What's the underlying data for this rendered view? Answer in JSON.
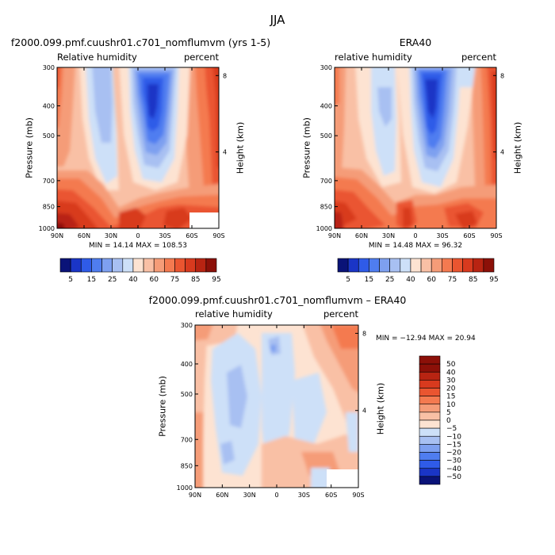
{
  "title": "JJA",
  "panels": [
    {
      "title": "f2000.099.pmf.cuushr01.c701_nomflumvm (yrs 1-5)",
      "left_label": "Relative humidity",
      "right_label": "percent",
      "min_max": "MIN =   14.14   MAX =  108.53"
    },
    {
      "title": "ERA40",
      "left_label": "relative humidity",
      "right_label": "percent",
      "min_max": "MIN =   14.48   MAX =   96.32"
    },
    {
      "title": "f2000.099.pmf.cuushr01.c701_nomflumvm – ERA40",
      "left_label": "relative humidity",
      "right_label": "percent",
      "min_max": "MIN = −12.94   MAX =   20.94"
    }
  ],
  "axis": {
    "ylabel": "Pressure (mb)",
    "ylabel_right": "Height (km)"
  },
  "chart_data": [
    {
      "type": "heatmap",
      "title": "f2000.099.pmf.cuushr01.c701_nomflumvm (yrs 1-5)",
      "subtitle_left": "Relative humidity",
      "subtitle_right": "percent",
      "x_ticks": [
        "90N",
        "60N",
        "30N",
        "0",
        "30S",
        "60S",
        "90S"
      ],
      "x_values": [
        90,
        60,
        30,
        0,
        -30,
        -60,
        -90
      ],
      "y_ticks": [
        "300",
        "400",
        "500",
        "700",
        "850",
        "1000"
      ],
      "y_values": [
        300,
        400,
        500,
        700,
        850,
        1000
      ],
      "y_right_ticks": [
        "8",
        "4"
      ],
      "y_right_values": [
        8,
        4
      ],
      "contour_levels": [
        5,
        10,
        15,
        20,
        25,
        30,
        40,
        50,
        60,
        70,
        75,
        80,
        85,
        90,
        95
      ],
      "colorbar_labels": [
        "5",
        "15",
        "25",
        "40",
        "60",
        "75",
        "85",
        "95"
      ],
      "min": 14.14,
      "max": 108.53
    },
    {
      "type": "heatmap",
      "title": "ERA40",
      "subtitle_left": "relative humidity",
      "subtitle_right": "percent",
      "x_ticks": [
        "90N",
        "60N",
        "30N",
        "0",
        "30S",
        "60S",
        "90S"
      ],
      "x_values": [
        90,
        60,
        30,
        0,
        -30,
        -60,
        -90
      ],
      "y_ticks": [
        "300",
        "400",
        "500",
        "700",
        "850",
        "1000"
      ],
      "y_values": [
        300,
        400,
        500,
        700,
        850,
        1000
      ],
      "y_right_ticks": [
        "8",
        "4"
      ],
      "y_right_values": [
        8,
        4
      ],
      "contour_levels": [
        5,
        10,
        15,
        20,
        25,
        30,
        40,
        50,
        60,
        70,
        75,
        80,
        85,
        90,
        95
      ],
      "colorbar_labels": [
        "5",
        "15",
        "25",
        "40",
        "60",
        "75",
        "85",
        "95"
      ],
      "min": 14.48,
      "max": 96.32
    },
    {
      "type": "heatmap",
      "title": "f2000.099.pmf.cuushr01.c701_nomflumvm – ERA40",
      "subtitle_left": "relative humidity",
      "subtitle_right": "percent",
      "x_ticks": [
        "90N",
        "60N",
        "30N",
        "0",
        "30S",
        "60S",
        "90S"
      ],
      "x_values": [
        90,
        60,
        30,
        0,
        -30,
        -60,
        -90
      ],
      "y_ticks": [
        "300",
        "400",
        "500",
        "700",
        "850",
        "1000"
      ],
      "y_values": [
        300,
        400,
        500,
        700,
        850,
        1000
      ],
      "y_right_ticks": [
        "8",
        "4"
      ],
      "y_right_values": [
        8,
        4
      ],
      "contour_levels": [
        -50,
        -40,
        -30,
        -20,
        -15,
        -10,
        -5,
        0,
        5,
        10,
        15,
        20,
        30,
        40,
        50
      ],
      "colorbar_labels": [
        "50",
        "40",
        "30",
        "20",
        "15",
        "10",
        "5",
        "0",
        "−5",
        "−10",
        "−15",
        "−20",
        "−30",
        "−40",
        "−50"
      ],
      "min": -12.94,
      "max": 20.94
    }
  ],
  "colors": {
    "rh_scale": [
      "#0a1378",
      "#1a35c6",
      "#2f5be8",
      "#4f7df0",
      "#7ea0f0",
      "#a8c0f2",
      "#cde0f8",
      "#fde3d2",
      "#f9c0a5",
      "#f59c78",
      "#f47a50",
      "#ea5530",
      "#d83a1e",
      "#b82412",
      "#8c1008"
    ],
    "diff_scale": [
      "#8c1008",
      "#b82412",
      "#d83a1e",
      "#ea5530",
      "#f47a50",
      "#f59c78",
      "#f9c0a5",
      "#fde3d2",
      "#cde0f8",
      "#a8c0f2",
      "#7ea0f0",
      "#4f7df0",
      "#2f5be8",
      "#1a35c6",
      "#0a1378"
    ]
  }
}
